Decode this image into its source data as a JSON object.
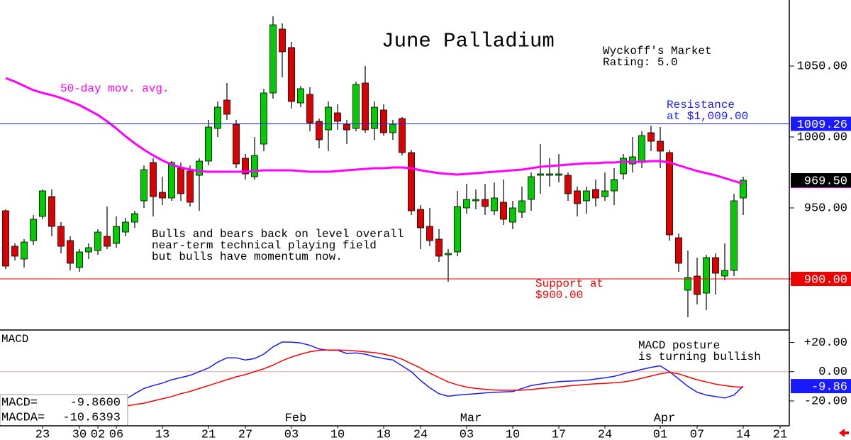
{
  "chart_data": [
    {
      "type": "candlestick",
      "title": "June Palladium",
      "categories": [
        null,
        null,
        null,
        null,
        "23",
        null,
        null,
        null,
        "30",
        null,
        "02",
        null,
        "06",
        null,
        null,
        null,
        null,
        "13",
        null,
        null,
        null,
        null,
        "21",
        null,
        null,
        null,
        "27",
        null,
        null,
        null,
        null,
        "03",
        null,
        null,
        null,
        null,
        "10",
        null,
        null,
        null,
        null,
        "18",
        null,
        null,
        null,
        "24",
        null,
        null,
        null,
        null,
        "03",
        null,
        null,
        null,
        null,
        "10",
        null,
        null,
        null,
        null,
        "17",
        null,
        null,
        null,
        null,
        "24",
        null,
        null,
        null,
        null,
        null,
        "01",
        null,
        null,
        null,
        "07",
        null,
        null,
        null,
        null,
        "14",
        null,
        null,
        null,
        "21"
      ],
      "months": [
        null,
        null,
        null,
        null,
        null,
        null,
        null,
        null,
        null,
        null,
        null,
        null,
        null,
        null,
        null,
        null,
        null,
        null,
        null,
        null,
        null,
        null,
        null,
        null,
        null,
        null,
        null,
        null,
        null,
        null,
        null,
        "Feb",
        null,
        null,
        null,
        null,
        null,
        null,
        null,
        null,
        null,
        null,
        null,
        null,
        null,
        null,
        null,
        null,
        null,
        null,
        "Mar",
        null,
        null,
        null,
        null,
        null,
        null,
        null,
        null,
        null,
        null,
        null,
        null,
        null,
        null,
        null,
        null,
        null,
        null,
        null,
        null,
        "Apr",
        null,
        null,
        null,
        null,
        null,
        null,
        null,
        null,
        null,
        null,
        null,
        null,
        null
      ],
      "open": [
        948,
        923,
        914,
        927,
        944,
        958,
        937,
        927,
        908,
        919,
        920,
        930,
        925,
        933,
        940,
        955,
        982,
        961,
        957,
        978,
        976,
        973,
        983,
        1006,
        1026,
        1009,
        985,
        972,
        995,
        1031,
        1076,
        1063,
        1024,
        1030,
        1011,
        1005,
        1017,
        1009,
        1006,
        1038,
        1006,
        1019,
        1003,
        1013,
        989,
        949,
        937,
        928,
        917,
        919,
        950,
        955,
        956,
        948,
        954,
        940,
        947,
        956,
        973,
        973,
        973,
        973,
        962,
        955,
        963,
        958,
        962,
        974,
        981,
        982,
        1003,
        997,
        989,
        929,
        892,
        902,
        890,
        915,
        902,
        906,
        957,
        null,
        null,
        null,
        null
      ],
      "high": [
        949,
        925,
        928,
        945,
        963,
        963,
        940,
        930,
        921,
        925,
        935,
        951,
        944,
        943,
        948,
        980,
        985,
        972,
        983,
        982,
        980,
        985,
        1012,
        1025,
        1038,
        1012,
        988,
        1000,
        1034,
        1085,
        1080,
        1067,
        1036,
        1035,
        1013,
        1025,
        1023,
        1012,
        1039,
        1050,
        1025,
        1023,
        1012,
        1014,
        991,
        952,
        950,
        935,
        921,
        962,
        967,
        963,
        967,
        968,
        970,
        955,
        965,
        975,
        995,
        985,
        988,
        975,
        965,
        965,
        970,
        975,
        978,
        988,
        1000,
        1004,
        1008,
        1007,
        991,
        932,
        920,
        915,
        917,
        918,
        925,
        960,
        972,
        null,
        null,
        null,
        null
      ],
      "low": [
        907,
        913,
        908,
        924,
        942,
        930,
        918,
        906,
        905,
        914,
        917,
        921,
        922,
        930,
        936,
        950,
        944,
        952,
        955,
        955,
        951,
        948,
        980,
        1000,
        1012,
        978,
        970,
        970,
        990,
        1027,
        1042,
        1020,
        1021,
        1004,
        992,
        990,
        1005,
        995,
        1004,
        1003,
        998,
        1001,
        998,
        987,
        945,
        921,
        923,
        912,
        898,
        916,
        946,
        949,
        945,
        945,
        938,
        935,
        943,
        948,
        960,
        965,
        968,
        955,
        944,
        946,
        951,
        955,
        952,
        970,
        975,
        978,
        990,
        978,
        927,
        905,
        873,
        882,
        878,
        889,
        899,
        902,
        945,
        null,
        null,
        null,
        null
      ],
      "close": [
        909,
        916,
        926,
        942,
        962,
        937,
        923,
        911,
        919,
        922,
        933,
        923,
        937,
        940,
        946,
        977,
        958,
        957,
        982,
        960,
        954,
        983,
        1007,
        1021,
        1016,
        981,
        974,
        987,
        1031,
        1079,
        1060,
        1025,
        1034,
        1010,
        998,
        1021,
        1011,
        1005,
        1037,
        1005,
        1021,
        1003,
        1009,
        989,
        948,
        936,
        927,
        916,
        918,
        951,
        956,
        956,
        951,
        957,
        942,
        950,
        955,
        972,
        974,
        974,
        974,
        960,
        953,
        962,
        957,
        962,
        970,
        985,
        986,
        1001,
        997,
        990,
        931,
        911,
        901,
        889,
        915,
        904,
        906,
        955,
        969.5,
        null,
        null,
        null,
        null
      ],
      "up_color": "#00cc00",
      "down_color": "#dd0000",
      "ma": {
        "name": "50-day mov. avg.",
        "color": "#ff00ff",
        "values": [
          1041.5,
          1039,
          1036,
          1033,
          1031,
          1029.5,
          1027.5,
          1025,
          1022.5,
          1019,
          1015.5,
          1011,
          1006,
          1000.5,
          995.5,
          991,
          987,
          983.5,
          980.5,
          978.5,
          977,
          976,
          975.5,
          975.5,
          975.5,
          975.5,
          975.5,
          976,
          976.5,
          976.5,
          976.5,
          976.5,
          976,
          975.5,
          975.5,
          975.5,
          976,
          976.5,
          977,
          977.5,
          978,
          978,
          978.5,
          978.5,
          978,
          976.5,
          975.5,
          974.5,
          974,
          973.5,
          974,
          974.5,
          975,
          975.5,
          976,
          976.5,
          977,
          978,
          979,
          979.5,
          980,
          980.5,
          981,
          981.5,
          981.5,
          982,
          982,
          982.5,
          982.5,
          982.5,
          983,
          983,
          982,
          980,
          978,
          976,
          974.5,
          973,
          971,
          969,
          967,
          null,
          null,
          null,
          null
        ]
      },
      "ylim": [
        864,
        1096.5
      ],
      "yticks": [
        {
          "value": 900,
          "label": "900.00"
        },
        {
          "value": 950,
          "label": "950.00"
        },
        {
          "value": 1000,
          "label": "1000.00"
        },
        {
          "value": 1050,
          "label": "1050.00"
        }
      ],
      "markers": [
        {
          "value": 1009.26,
          "label": "1009.26",
          "color": "#1a1aff",
          "line": true
        },
        {
          "value": 969.5,
          "label": "969.50",
          "color": "#000000",
          "line": false
        },
        {
          "value": 900,
          "label": "900.00",
          "color": "#ee0000",
          "line": true
        }
      ],
      "annotations": [
        {
          "lines": [
            "Wyckoff's Market",
            "Rating: 5.0"
          ]
        },
        {
          "lines": [
            "Resistance",
            "at $1,009.00"
          ]
        },
        {
          "lines": [
            "Bulls and bears back on level overall",
            "near-term technical playing field",
            "but bulls have momentum now."
          ]
        },
        {
          "lines": [
            "Support at",
            "$900.00"
          ]
        }
      ]
    },
    {
      "type": "line",
      "title": "MACD",
      "series": [
        {
          "name": "MACD=",
          "color": "#1a1aff",
          "readout": {
            "value": -9.86,
            "label": "-9.8600"
          },
          "values": [
            null,
            null,
            null,
            null,
            null,
            null,
            null,
            null,
            null,
            null,
            null,
            null,
            null,
            -19,
            -15,
            -11.5,
            -9.5,
            -7.8,
            -5.5,
            -4,
            -2.5,
            0,
            2.5,
            6.5,
            9.5,
            9.5,
            8,
            9,
            12,
            17,
            20.3,
            20.2,
            19.6,
            18,
            15.5,
            14.6,
            14.6,
            12.5,
            12.8,
            12,
            10.2,
            9,
            8,
            4,
            0,
            -6,
            -11,
            -15,
            -16.8,
            -16,
            -15.5,
            -15,
            -14.5,
            -14.1,
            -13.8,
            -13.6,
            -11.5,
            -9.5,
            -8.5,
            -7.5,
            -6.8,
            -6.5,
            -6.2,
            -5.8,
            -5,
            -4.2,
            -3.2,
            -1.5,
            0,
            1.5,
            3,
            4,
            0,
            -5,
            -10,
            -14,
            -16,
            -17,
            -18,
            -16,
            -9.86,
            null,
            null,
            null,
            null
          ]
        },
        {
          "name": "MACDA=",
          "color": "#ff0000",
          "readout": {
            "value": -10.6393,
            "label": "-10.6393"
          },
          "values": [
            null,
            null,
            null,
            null,
            null,
            null,
            null,
            null,
            null,
            null,
            null,
            null,
            null,
            -23.5,
            -22.5,
            -21.5,
            -20,
            -18.5,
            -17,
            -15,
            -13.5,
            -11.5,
            -9.5,
            -7.5,
            -5.5,
            -3.5,
            -2,
            0,
            2,
            4.5,
            7.5,
            10,
            12,
            13.6,
            14.6,
            14.8,
            14.8,
            14.6,
            14.2,
            13.6,
            13,
            12,
            10.5,
            8.5,
            5.5,
            2.5,
            -1,
            -4,
            -7,
            -9,
            -10.5,
            -11.5,
            -12,
            -12.5,
            -12.7,
            -12.7,
            -12.6,
            -12.2,
            -11.5,
            -11,
            -10.5,
            -9.8,
            -9.2,
            -8.7,
            -8.3,
            -8,
            -7.6,
            -7,
            -6,
            -4.5,
            -3,
            -1.5,
            -0.5,
            -1.5,
            -3.5,
            -5.5,
            -7,
            -8.5,
            -9.5,
            -10.3,
            -10.6393,
            null,
            null,
            null,
            null
          ]
        }
      ],
      "ylim": [
        -37,
        28.5
      ],
      "yticks": [
        {
          "value": 20,
          "label": "+20.00"
        },
        {
          "value": 0,
          "label": "0.00"
        },
        {
          "value": -20,
          "label": "-20.00"
        }
      ],
      "zero_line": true,
      "markers": [
        {
          "value": -9.86,
          "label": "-9.86",
          "color": "#1a1aff",
          "line": false
        }
      ],
      "annotations": [
        {
          "lines": [
            "MACD posture",
            "is turning bullish"
          ]
        }
      ]
    }
  ]
}
